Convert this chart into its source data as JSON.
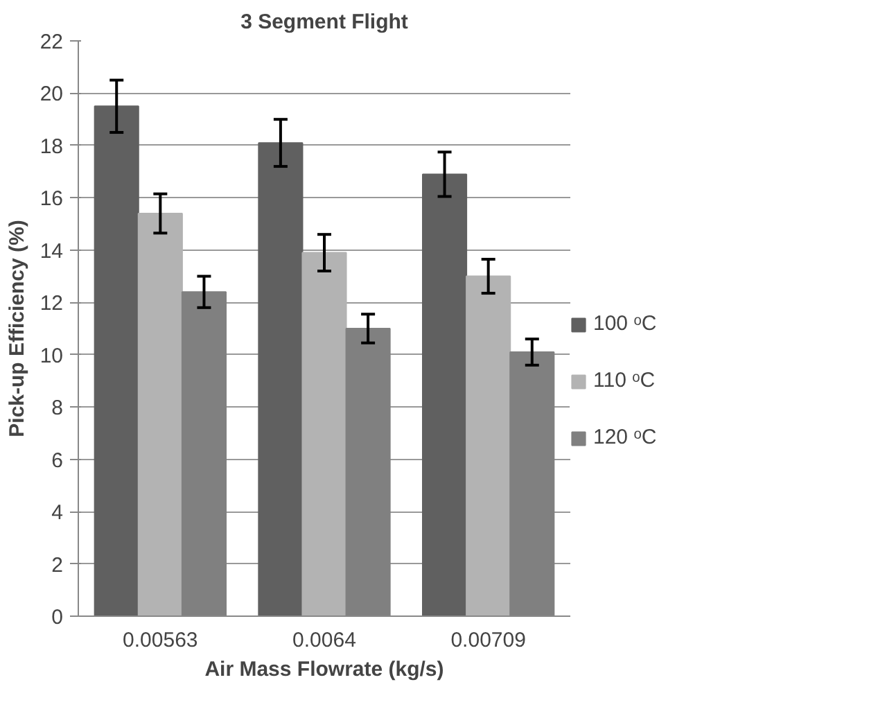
{
  "chart_data": {
    "type": "bar",
    "title": "3 Segment Flight",
    "xlabel": "Air Mass Flowrate (kg/s)",
    "ylabel": "Pick-up Efficiency (%)",
    "categories": [
      "0.00563",
      "0.0064",
      "0.00709"
    ],
    "series": [
      {
        "name": "100 ᵒC",
        "color": "#606060",
        "values": [
          19.5,
          18.1,
          16.9
        ],
        "errors": [
          1.0,
          0.9,
          0.85
        ]
      },
      {
        "name": "110 ᵒC",
        "color": "#b3b3b3",
        "values": [
          15.4,
          13.9,
          13.0
        ],
        "errors": [
          0.75,
          0.7,
          0.65
        ]
      },
      {
        "name": "120 ᵒC",
        "color": "#808080",
        "values": [
          12.4,
          11.0,
          10.1
        ],
        "errors": [
          0.6,
          0.55,
          0.5
        ]
      }
    ],
    "ylim": [
      0,
      22
    ],
    "yticks": [
      0,
      2,
      4,
      6,
      8,
      10,
      12,
      14,
      16,
      18,
      20,
      22
    ],
    "grid": "y",
    "legend": "right"
  }
}
